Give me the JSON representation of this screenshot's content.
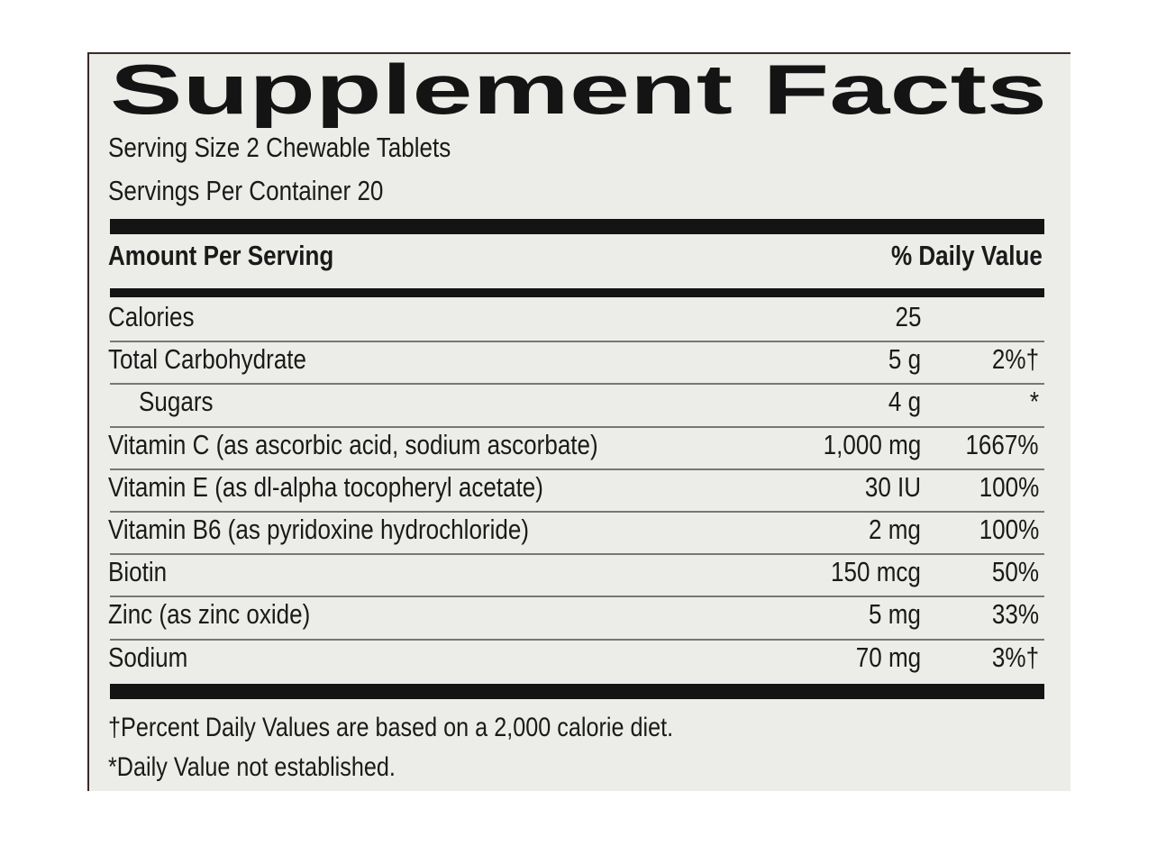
{
  "header": {
    "title": "Supplement Facts",
    "serving_size": "Serving Size 2 Chewable Tablets",
    "servings_per_container": "Servings Per Container 20"
  },
  "table": {
    "columns": [
      "Amount Per Serving",
      "% Daily Value"
    ],
    "rows": [
      {
        "name": "Calories",
        "amount": "25"
      },
      {
        "name": "Total Carbohydrate",
        "amount": "5 g",
        "dv": "2%†"
      },
      {
        "name": "Sugars",
        "amount": "4 g",
        "dv": "*"
      },
      {
        "name": "Vitamin C (as ascorbic acid, sodium ascorbate)",
        "amount": "1,000 mg",
        "dv": "1667%"
      },
      {
        "name": "Vitamin E (as dl-alpha tocopheryl acetate)",
        "amount": "30 IU",
        "dv": "100%"
      },
      {
        "name": "Vitamin B6 (as pyridoxine hydrochloride)",
        "amount": "2 mg",
        "dv": "100%"
      },
      {
        "name": "Biotin",
        "amount": "150 mcg",
        "dv": "50%"
      },
      {
        "name": "Zinc (as zinc oxide)",
        "amount": "5 mg",
        "dv": "33%"
      },
      {
        "name": "Sodium",
        "amount": "70 mg",
        "dv": "3%†"
      }
    ]
  },
  "footnotes": [
    "†Percent Daily Values are based on a 2,000 calorie diet.",
    "*Daily Value not established."
  ]
}
